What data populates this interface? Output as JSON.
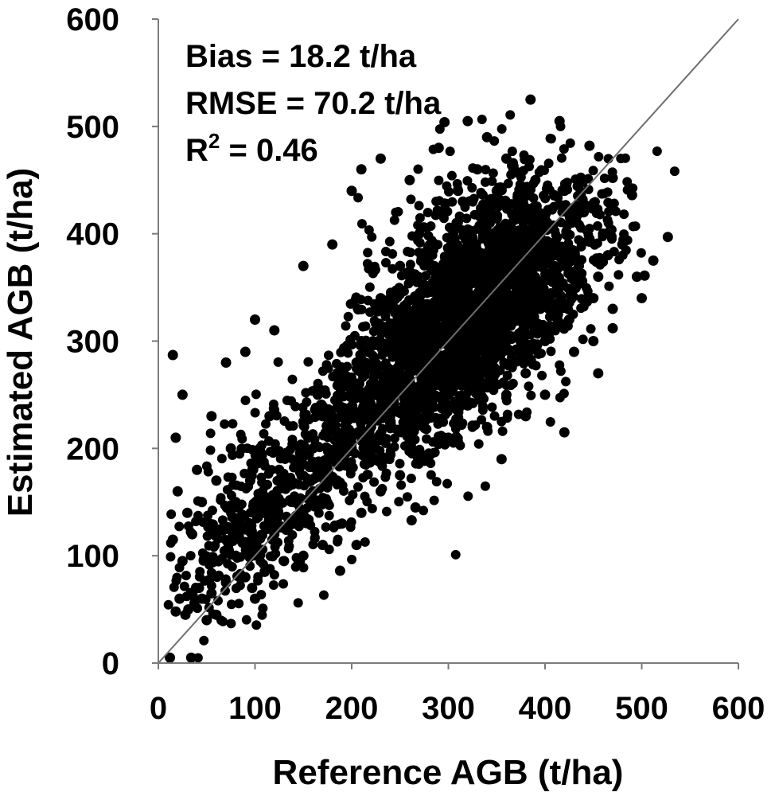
{
  "chart_data": {
    "type": "scatter",
    "title": "",
    "xlabel": "Reference AGB (t/ha)",
    "ylabel": "Estimated AGB (t/ha)",
    "xlim": [
      0,
      600
    ],
    "ylim": [
      0,
      600
    ],
    "x_ticks": [
      "0",
      "100",
      "200",
      "300",
      "400",
      "500",
      "600"
    ],
    "y_ticks": [
      "0",
      "100",
      "200",
      "300",
      "400",
      "500",
      "600"
    ],
    "reference_line": "1:1",
    "grid": false,
    "stats": {
      "bias": "Bias = 18.2 t/ha",
      "rmse": "RMSE = 70.2 t/ha",
      "r2_prefix": "R",
      "r2_sup": "2",
      "r2_suffix": " = 0.46"
    },
    "marker_color": "#000000",
    "series": [
      {
        "points": [
          [
            15,
            287
          ],
          [
            527,
            397
          ],
          [
            415,
            505
          ],
          [
            446,
            482
          ],
          [
            320,
            505
          ],
          [
            296,
            504
          ],
          [
            385,
            525
          ],
          [
            470,
            452
          ],
          [
            490,
            436
          ],
          [
            512,
            375
          ],
          [
            503,
            361
          ],
          [
            470,
            312
          ],
          [
            455,
            270
          ],
          [
            420,
            215
          ],
          [
            355,
            190
          ],
          [
            262,
            133
          ],
          [
            266,
            145
          ],
          [
            188,
            86
          ],
          [
            205,
            110
          ],
          [
            145,
            95
          ],
          [
            100,
            60
          ],
          [
            97,
            70
          ],
          [
            34,
            5
          ],
          [
            12,
            5
          ],
          [
            18,
            48
          ],
          [
            31,
            50
          ],
          [
            22,
            60
          ],
          [
            28,
            45
          ],
          [
            38,
            58
          ],
          [
            15,
            115
          ],
          [
            20,
            160
          ],
          [
            18,
            210
          ],
          [
            25,
            250
          ],
          [
            40,
            180
          ],
          [
            55,
            230
          ],
          [
            70,
            280
          ],
          [
            90,
            290
          ],
          [
            100,
            320
          ],
          [
            120,
            310
          ],
          [
            150,
            370
          ],
          [
            180,
            390
          ],
          [
            200,
            440
          ],
          [
            210,
            460
          ],
          [
            230,
            470
          ],
          [
            260,
            450
          ],
          [
            290,
            480
          ],
          [
            340,
            490
          ],
          [
            360,
            470
          ],
          [
            390,
            450
          ],
          [
            420,
            440
          ],
          [
            440,
            420
          ],
          [
            460,
            400
          ],
          [
            480,
            390
          ],
          [
            500,
            340
          ],
          [
            495,
            360
          ],
          [
            470,
            330
          ],
          [
            450,
            300
          ],
          [
            430,
            290
          ],
          [
            400,
            250
          ],
          [
            380,
            230
          ],
          [
            340,
            220
          ],
          [
            300,
            210
          ],
          [
            270,
            190
          ],
          [
            250,
            175
          ],
          [
            230,
            160
          ],
          [
            210,
            140
          ],
          [
            190,
            130
          ],
          [
            170,
            110
          ],
          [
            150,
            100
          ],
          [
            130,
            95
          ],
          [
            110,
            85
          ],
          [
            90,
            80
          ],
          [
            70,
            75
          ],
          [
            55,
            65
          ],
          [
            45,
            60
          ],
          [
            60,
            45
          ],
          [
            50,
            40
          ],
          [
            42,
            70
          ],
          [
            25,
            95
          ],
          [
            35,
            120
          ],
          [
            30,
            140
          ],
          [
            45,
            150
          ],
          [
            60,
            170
          ],
          [
            75,
            200
          ],
          [
            80,
            150
          ],
          [
            95,
            170
          ],
          [
            105,
            200
          ],
          [
            115,
            230
          ],
          [
            125,
            180
          ],
          [
            140,
            150
          ],
          [
            155,
            210
          ],
          [
            165,
            250
          ],
          [
            175,
            200
          ],
          [
            185,
            170
          ],
          [
            195,
            230
          ],
          [
            205,
            280
          ],
          [
            215,
            250
          ],
          [
            225,
            310
          ],
          [
            235,
            290
          ],
          [
            245,
            330
          ],
          [
            255,
            300
          ],
          [
            265,
            340
          ],
          [
            275,
            380
          ],
          [
            285,
            320
          ],
          [
            295,
            360
          ],
          [
            305,
            400
          ],
          [
            315,
            430
          ],
          [
            325,
            380
          ],
          [
            335,
            420
          ],
          [
            345,
            360
          ],
          [
            355,
            400
          ],
          [
            365,
            380
          ],
          [
            375,
            340
          ],
          [
            385,
            360
          ],
          [
            395,
            330
          ],
          [
            405,
            310
          ],
          [
            415,
            350
          ],
          [
            425,
            320
          ],
          [
            435,
            370
          ],
          [
            445,
            340
          ],
          [
            455,
            360
          ],
          [
            465,
            380
          ],
          [
            330,
            300
          ],
          [
            310,
            280
          ],
          [
            290,
            260
          ],
          [
            280,
            240
          ],
          [
            300,
            330
          ],
          [
            320,
            350
          ],
          [
            340,
            320
          ],
          [
            360,
            300
          ],
          [
            380,
            290
          ],
          [
            280,
            300
          ],
          [
            260,
            280
          ],
          [
            240,
            250
          ],
          [
            220,
            220
          ],
          [
            200,
            200
          ],
          [
            180,
            190
          ],
          [
            160,
            160
          ],
          [
            140,
            130
          ],
          [
            120,
            120
          ],
          [
            100,
            110
          ],
          [
            80,
            100
          ],
          [
            65,
            125
          ],
          [
            85,
            135
          ],
          [
            110,
            140
          ],
          [
            135,
            165
          ],
          [
            150,
            185
          ],
          [
            170,
            230
          ],
          [
            190,
            260
          ],
          [
            210,
            300
          ],
          [
            230,
            340
          ],
          [
            250,
            370
          ],
          [
            270,
            400
          ],
          [
            290,
            420
          ],
          [
            310,
            440
          ],
          [
            330,
            460
          ],
          [
            350,
            440
          ],
          [
            370,
            420
          ],
          [
            390,
            400
          ],
          [
            410,
            380
          ],
          [
            430,
            360
          ],
          [
            450,
            340
          ],
          [
            400,
            300
          ],
          [
            380,
            270
          ],
          [
            360,
            250
          ],
          [
            340,
            260
          ],
          [
            320,
            240
          ],
          [
            300,
            250
          ],
          [
            310,
            320
          ],
          [
            320,
            330
          ],
          [
            330,
            340
          ],
          [
            340,
            350
          ],
          [
            350,
            330
          ],
          [
            360,
            340
          ],
          [
            370,
            360
          ],
          [
            300,
            300
          ],
          [
            290,
            310
          ],
          [
            280,
            320
          ],
          [
            270,
            330
          ],
          [
            260,
            310
          ],
          [
            250,
            290
          ],
          [
            240,
            270
          ],
          [
            230,
            240
          ],
          [
            220,
            260
          ],
          [
            210,
            230
          ],
          [
            200,
            250
          ],
          [
            190,
            210
          ],
          [
            180,
            220
          ],
          [
            170,
            180
          ],
          [
            160,
            200
          ]
        ]
      }
    ]
  }
}
